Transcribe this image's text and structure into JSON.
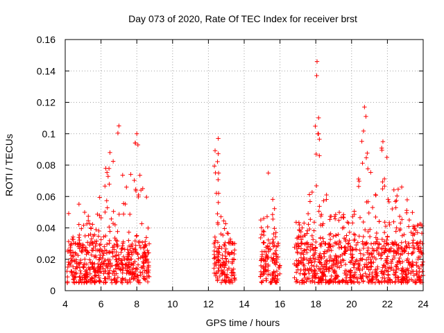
{
  "chart_data": {
    "type": "scatter",
    "title": "Day 073 of 2020, Rate Of TEC Index for receiver brst",
    "xlabel": "GPS time / hours",
    "ylabel": "ROTI / TECUs",
    "xlim": [
      4,
      24
    ],
    "ylim": [
      0,
      0.16
    ],
    "xticks": [
      "4",
      "6",
      "8",
      "10",
      "12",
      "14",
      "16",
      "18",
      "20",
      "22",
      "24"
    ],
    "yticks": [
      "0",
      "0.02",
      "0.04",
      "0.06",
      "0.08",
      "0.1",
      "0.12",
      "0.14",
      "0.16"
    ],
    "grid": true,
    "marker": "plus",
    "marker_color": "#ff0000",
    "point_count": 1760,
    "segments": [
      {
        "x_range": [
          4.1,
          8.7
        ],
        "baseline": [
          0.005,
          0.03
        ],
        "peak_envelope": [
          [
            4.3,
            0.05
          ],
          [
            4.8,
            0.06
          ],
          [
            5.5,
            0.05
          ],
          [
            6.4,
            0.09
          ],
          [
            7.0,
            0.105
          ],
          [
            7.5,
            0.07
          ],
          [
            8.0,
            0.1
          ],
          [
            8.6,
            0.058
          ]
        ]
      },
      {
        "x_range": [
          12.3,
          13.5
        ],
        "baseline": [
          0.005,
          0.03
        ],
        "peak_envelope": [
          [
            12.5,
            0.097
          ],
          [
            12.7,
            0.07
          ],
          [
            13.0,
            0.04
          ],
          [
            13.4,
            0.03
          ]
        ]
      },
      {
        "x_range": [
          14.9,
          16.0
        ],
        "baseline": [
          0.005,
          0.03
        ],
        "peak_envelope": [
          [
            15.1,
            0.05
          ],
          [
            15.3,
            0.075
          ],
          [
            15.6,
            0.06
          ],
          [
            15.9,
            0.055
          ]
        ]
      },
      {
        "x_range": [
          16.8,
          24.0
        ],
        "baseline": [
          0.005,
          0.03
        ],
        "peak_envelope": [
          [
            17.3,
            0.045
          ],
          [
            17.6,
            0.065
          ],
          [
            18.1,
            0.146
          ],
          [
            18.3,
            0.075
          ],
          [
            19.0,
            0.05
          ],
          [
            20.0,
            0.05
          ],
          [
            20.7,
            0.117
          ],
          [
            21.0,
            0.08
          ],
          [
            21.7,
            0.095
          ],
          [
            22.7,
            0.066
          ],
          [
            23.2,
            0.058
          ],
          [
            24.0,
            0.04
          ]
        ]
      }
    ],
    "notable_points": [
      {
        "x": 18.07,
        "y": 0.146
      },
      {
        "x": 18.05,
        "y": 0.137
      },
      {
        "x": 20.72,
        "y": 0.117
      },
      {
        "x": 20.8,
        "y": 0.111
      },
      {
        "x": 7.0,
        "y": 0.105
      },
      {
        "x": 8.0,
        "y": 0.1
      },
      {
        "x": 18.12,
        "y": 0.1
      },
      {
        "x": 12.55,
        "y": 0.097
      },
      {
        "x": 21.75,
        "y": 0.095
      },
      {
        "x": 6.5,
        "y": 0.088
      },
      {
        "x": 18.2,
        "y": 0.086
      },
      {
        "x": 15.35,
        "y": 0.075
      },
      {
        "x": 22.8,
        "y": 0.066
      }
    ]
  }
}
